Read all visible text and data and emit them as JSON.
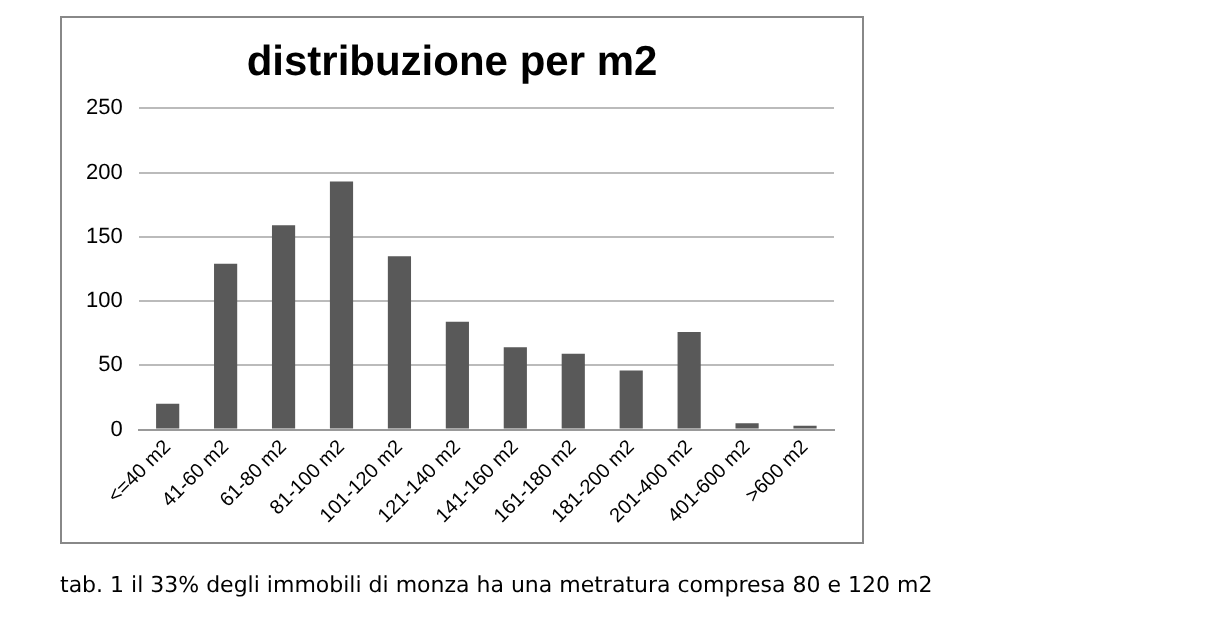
{
  "chart_data": {
    "type": "bar",
    "title": "distribuzione per m2",
    "categories": [
      "<=40 m2",
      "41-60 m2",
      "61-80 m2",
      "81-100 m2",
      "101-120 m2",
      "121-140 m2",
      "141-160 m2",
      "161-180 m2",
      "181-200 m2",
      "201-400 m2",
      "401-600 m2",
      ">600 m2"
    ],
    "values": [
      20,
      129,
      159,
      193,
      135,
      84,
      64,
      59,
      46,
      76,
      5,
      3
    ],
    "color": "#595959",
    "ylim": [
      0,
      250
    ],
    "yticks": [
      0,
      50,
      100,
      150,
      200,
      250
    ],
    "grid": "y",
    "legend": false,
    "annotations": [
      "tab. 1 il 33% degli immobili di monza ha una metratura compresa 80 e 120 m2"
    ]
  }
}
